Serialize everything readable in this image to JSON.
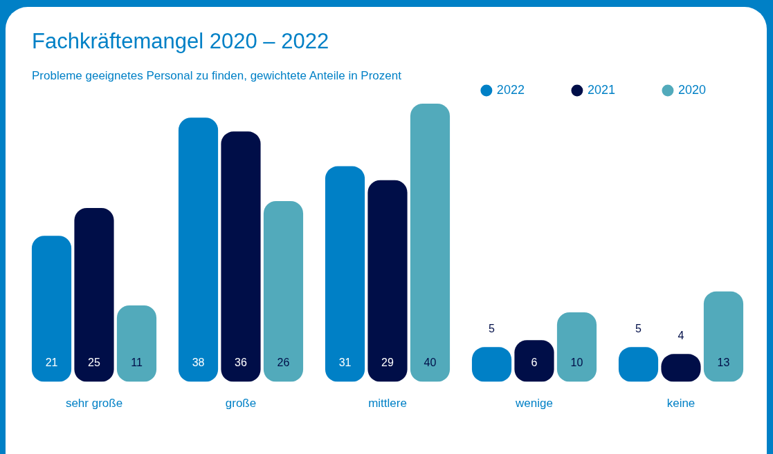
{
  "chart_data": {
    "type": "bar",
    "title": "Fachkräftemangel 2020 – 2022",
    "subtitle": "Probleme geeignetes Personal zu finden, gewichtete Anteile in Prozent",
    "categories": [
      "sehr große",
      "große",
      "mittlere",
      "wenige",
      "keine"
    ],
    "series": [
      {
        "name": "2022",
        "color": "#0080c6",
        "values": [
          21,
          38,
          31,
          5,
          5
        ]
      },
      {
        "name": "2021",
        "color": "#000e48",
        "values": [
          25,
          36,
          29,
          6,
          4
        ]
      },
      {
        "name": "2020",
        "color": "#52aabb",
        "values": [
          11,
          26,
          40,
          10,
          13
        ]
      }
    ],
    "data_labels": true,
    "grid": false,
    "legend": "top right"
  }
}
